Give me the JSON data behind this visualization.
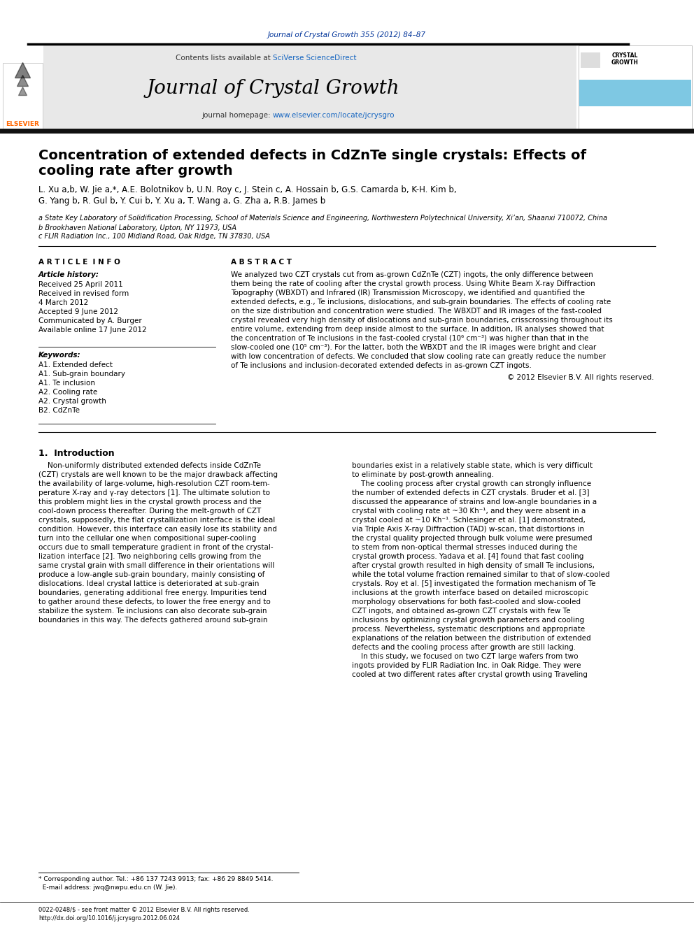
{
  "journal_ref": "Journal of Crystal Growth 355 (2012) 84–87",
  "journal_name": "Journal of Crystal Growth",
  "journal_homepage": "journal homepage: www.elsevier.com/locate/jcrysgro",
  "contents_line": "Contents lists available at SciVerse ScienceDirect",
  "title_line1": "Concentration of extended defects in CdZnTe single crystals: Effects of",
  "title_line2": "cooling rate after growth",
  "author_line1": "L. Xu a,b, W. Jie a,*, A.E. Bolotnikov b, U.N. Roy c, J. Stein c, A. Hossain b, G.S. Camarda b, K-H. Kim b,",
  "author_line2": "G. Yang b, R. Gul b, Y. Cui b, Y. Xu a, T. Wang a, G. Zha a, R.B. James b",
  "affil_a": "a State Key Laboratory of Solidification Processing, School of Materials Science and Engineering, Northwestern Polytechnical University, Xi’an, Shaanxi 710072, China",
  "affil_b": "b Brookhaven National Laboratory, Upton, NY 11973, USA",
  "affil_c": "c FLIR Radiation Inc., 100 Midland Road, Oak Ridge, TN 37830, USA",
  "article_info_header": "A R T I C L E  I N F O",
  "abstract_header": "A B S T R A C T",
  "article_history_label": "Article history:",
  "article_history": [
    "Received 25 April 2011",
    "Received in revised form",
    "4 March 2012",
    "Accepted 9 June 2012",
    "Communicated by A. Burger",
    "Available online 17 June 2012"
  ],
  "keywords_label": "Keywords:",
  "keywords": [
    "A1. Extended defect",
    "A1. Sub-grain boundary",
    "A1. Te inclusion",
    "A2. Cooling rate",
    "A2. Crystal growth",
    "B2. CdZnTe"
  ],
  "abstract_lines": [
    "We analyzed two CZT crystals cut from as-grown CdZnTe (CZT) ingots, the only difference between",
    "them being the rate of cooling after the crystal growth process. Using White Beam X-ray Diffraction",
    "Topography (WBXDT) and Infrared (IR) Transmission Microscopy, we identified and quantified the",
    "extended defects, e.g., Te inclusions, dislocations, and sub-grain boundaries. The effects of cooling rate",
    "on the size distribution and concentration were studied. The WBXDT and IR images of the fast-cooled",
    "crystal revealed very high density of dislocations and sub-grain boundaries, crisscrossing throughout its",
    "entire volume, extending from deep inside almost to the surface. In addition, IR analyses showed that",
    "the concentration of Te inclusions in the fast-cooled crystal (10⁶ cm⁻³) was higher than that in the",
    "slow-cooled one (10⁵ cm⁻³). For the latter, both the WBXDT and the IR images were bright and clear",
    "with low concentration of defects. We concluded that slow cooling rate can greatly reduce the number",
    "of Te inclusions and inclusion-decorated extended defects in as-grown CZT ingots."
  ],
  "copyright": "© 2012 Elsevier B.V. All rights reserved.",
  "intro_header": "1.  Introduction",
  "intro_left_lines": [
    "    Non-uniformly distributed extended defects inside CdZnTe",
    "(CZT) crystals are well known to be the major drawback affecting",
    "the availability of large-volume, high-resolution CZT room-tem-",
    "perature X-ray and γ-ray detectors [1]. The ultimate solution to",
    "this problem might lies in the crystal growth process and the",
    "cool-down process thereafter. During the melt-growth of CZT",
    "crystals, supposedly, the flat crystallization interface is the ideal",
    "condition. However, this interface can easily lose its stability and",
    "turn into the cellular one when compositional super-cooling",
    "occurs due to small temperature gradient in front of the crystal-",
    "lization interface [2]. Two neighboring cells growing from the",
    "same crystal grain with small difference in their orientations will",
    "produce a low-angle sub-grain boundary, mainly consisting of",
    "dislocations. Ideal crystal lattice is deteriorated at sub-grain",
    "boundaries, generating additional free energy. Impurities tend",
    "to gather around these defects, to lower the free energy and to",
    "stabilize the system. Te inclusions can also decorate sub-grain",
    "boundaries in this way. The defects gathered around sub-grain"
  ],
  "intro_right_lines": [
    "boundaries exist in a relatively stable state, which is very difficult",
    "to eliminate by post-growth annealing.",
    "    The cooling process after crystal growth can strongly influence",
    "the number of extended defects in CZT crystals. Bruder et al. [3]",
    "discussed the appearance of strains and low-angle boundaries in a",
    "crystal with cooling rate at ~30 Kh⁻¹, and they were absent in a",
    "crystal cooled at ~10 Kh⁻¹. Schlesinger et al. [1] demonstrated,",
    "via Triple Axis X-ray Diffraction (TAD) w-scan, that distortions in",
    "the crystal quality projected through bulk volume were presumed",
    "to stem from non-optical thermal stresses induced during the",
    "crystal growth process. Yadava et al. [4] found that fast cooling",
    "after crystal growth resulted in high density of small Te inclusions,",
    "while the total volume fraction remained similar to that of slow-cooled",
    "crystals. Roy et al. [5] investigated the formation mechanism of Te",
    "inclusions at the growth interface based on detailed microscopic",
    "morphology observations for both fast-cooled and slow-cooled",
    "CZT ingots, and obtained as-grown CZT crystals with few Te",
    "inclusions by optimizing crystal growth parameters and cooling",
    "process. Nevertheless, systematic descriptions and appropriate",
    "explanations of the relation between the distribution of extended",
    "defects and the cooling process after growth are still lacking.",
    "    In this study, we focused on two CZT large wafers from two",
    "ingots provided by FLIR Radiation Inc. in Oak Ridge. They were",
    "cooled at two different rates after crystal growth using Traveling"
  ],
  "footer_note1": "* Corresponding author. Tel.: +86 137 7243 9913; fax: +86 29 8849 5414.",
  "footer_note2": "  E-mail address: jwq@nwpu.edu.cn (W. Jie).",
  "footer_bottom1": "0022-0248/$ - see front matter © 2012 Elsevier B.V. All rights reserved.",
  "footer_bottom2": "http://dx.doi.org/10.1016/j.jcrysgro.2012.06.024",
  "bg_header": "#e8e8e8",
  "bg_white": "#ffffff",
  "color_blue": "#003399",
  "color_sciverse": "#1565c0",
  "color_elsevier_orange": "#ff6600",
  "color_black": "#000000",
  "color_header_bar": "#111111"
}
